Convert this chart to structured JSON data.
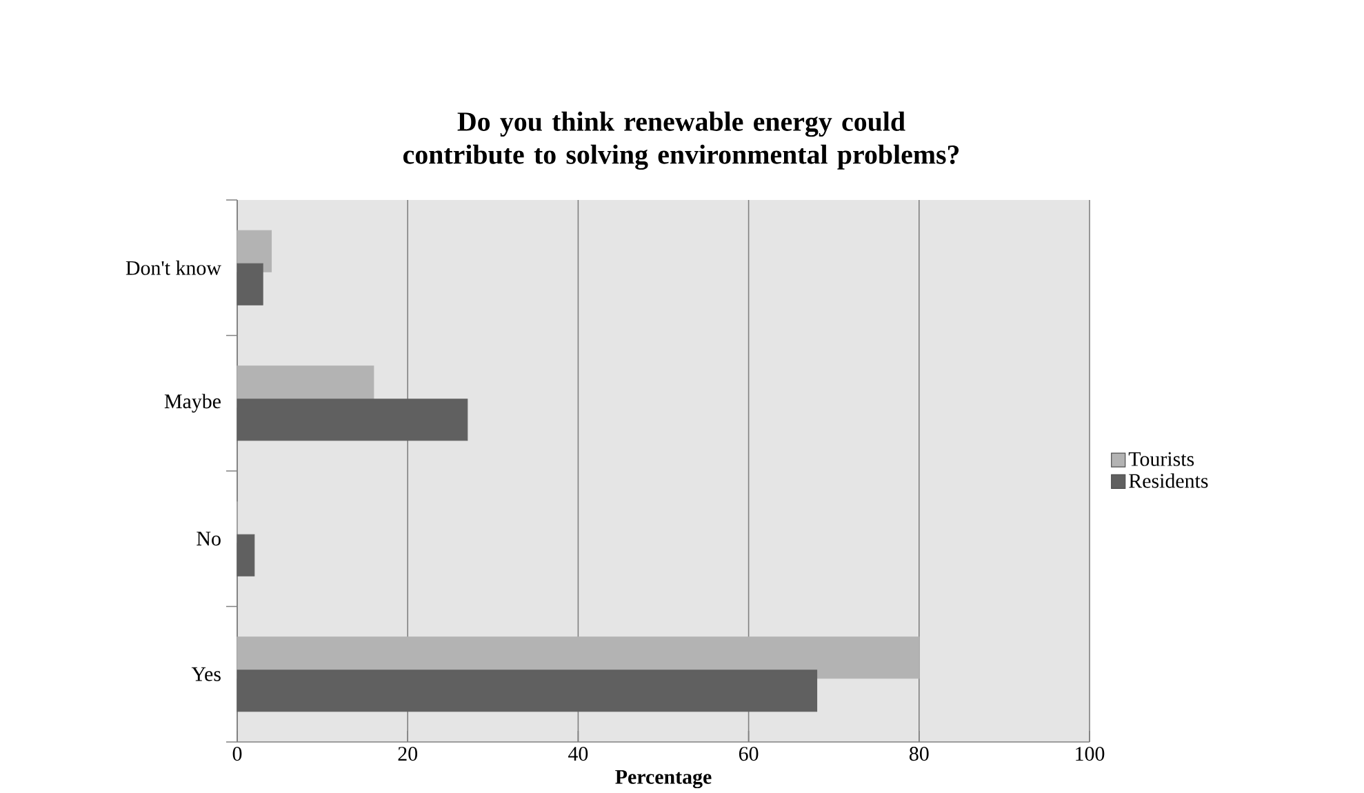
{
  "chart_data": {
    "type": "bar",
    "orientation": "horizontal",
    "title": "Do you think renewable energy could contribute to solving environmental problems?",
    "xlabel": "Percentage",
    "categories": [
      "Don't know",
      "Maybe",
      "No",
      "Yes"
    ],
    "series": [
      {
        "name": "Tourists",
        "color": "#b3b3b3",
        "values": [
          4,
          16,
          0,
          80
        ]
      },
      {
        "name": "Residents",
        "color": "#606060",
        "values": [
          3,
          27,
          2,
          68
        ]
      }
    ],
    "xlim": [
      0,
      100
    ],
    "xticks": [
      0,
      20,
      40,
      60,
      80,
      100
    ],
    "grid": "x",
    "legend": "right"
  }
}
